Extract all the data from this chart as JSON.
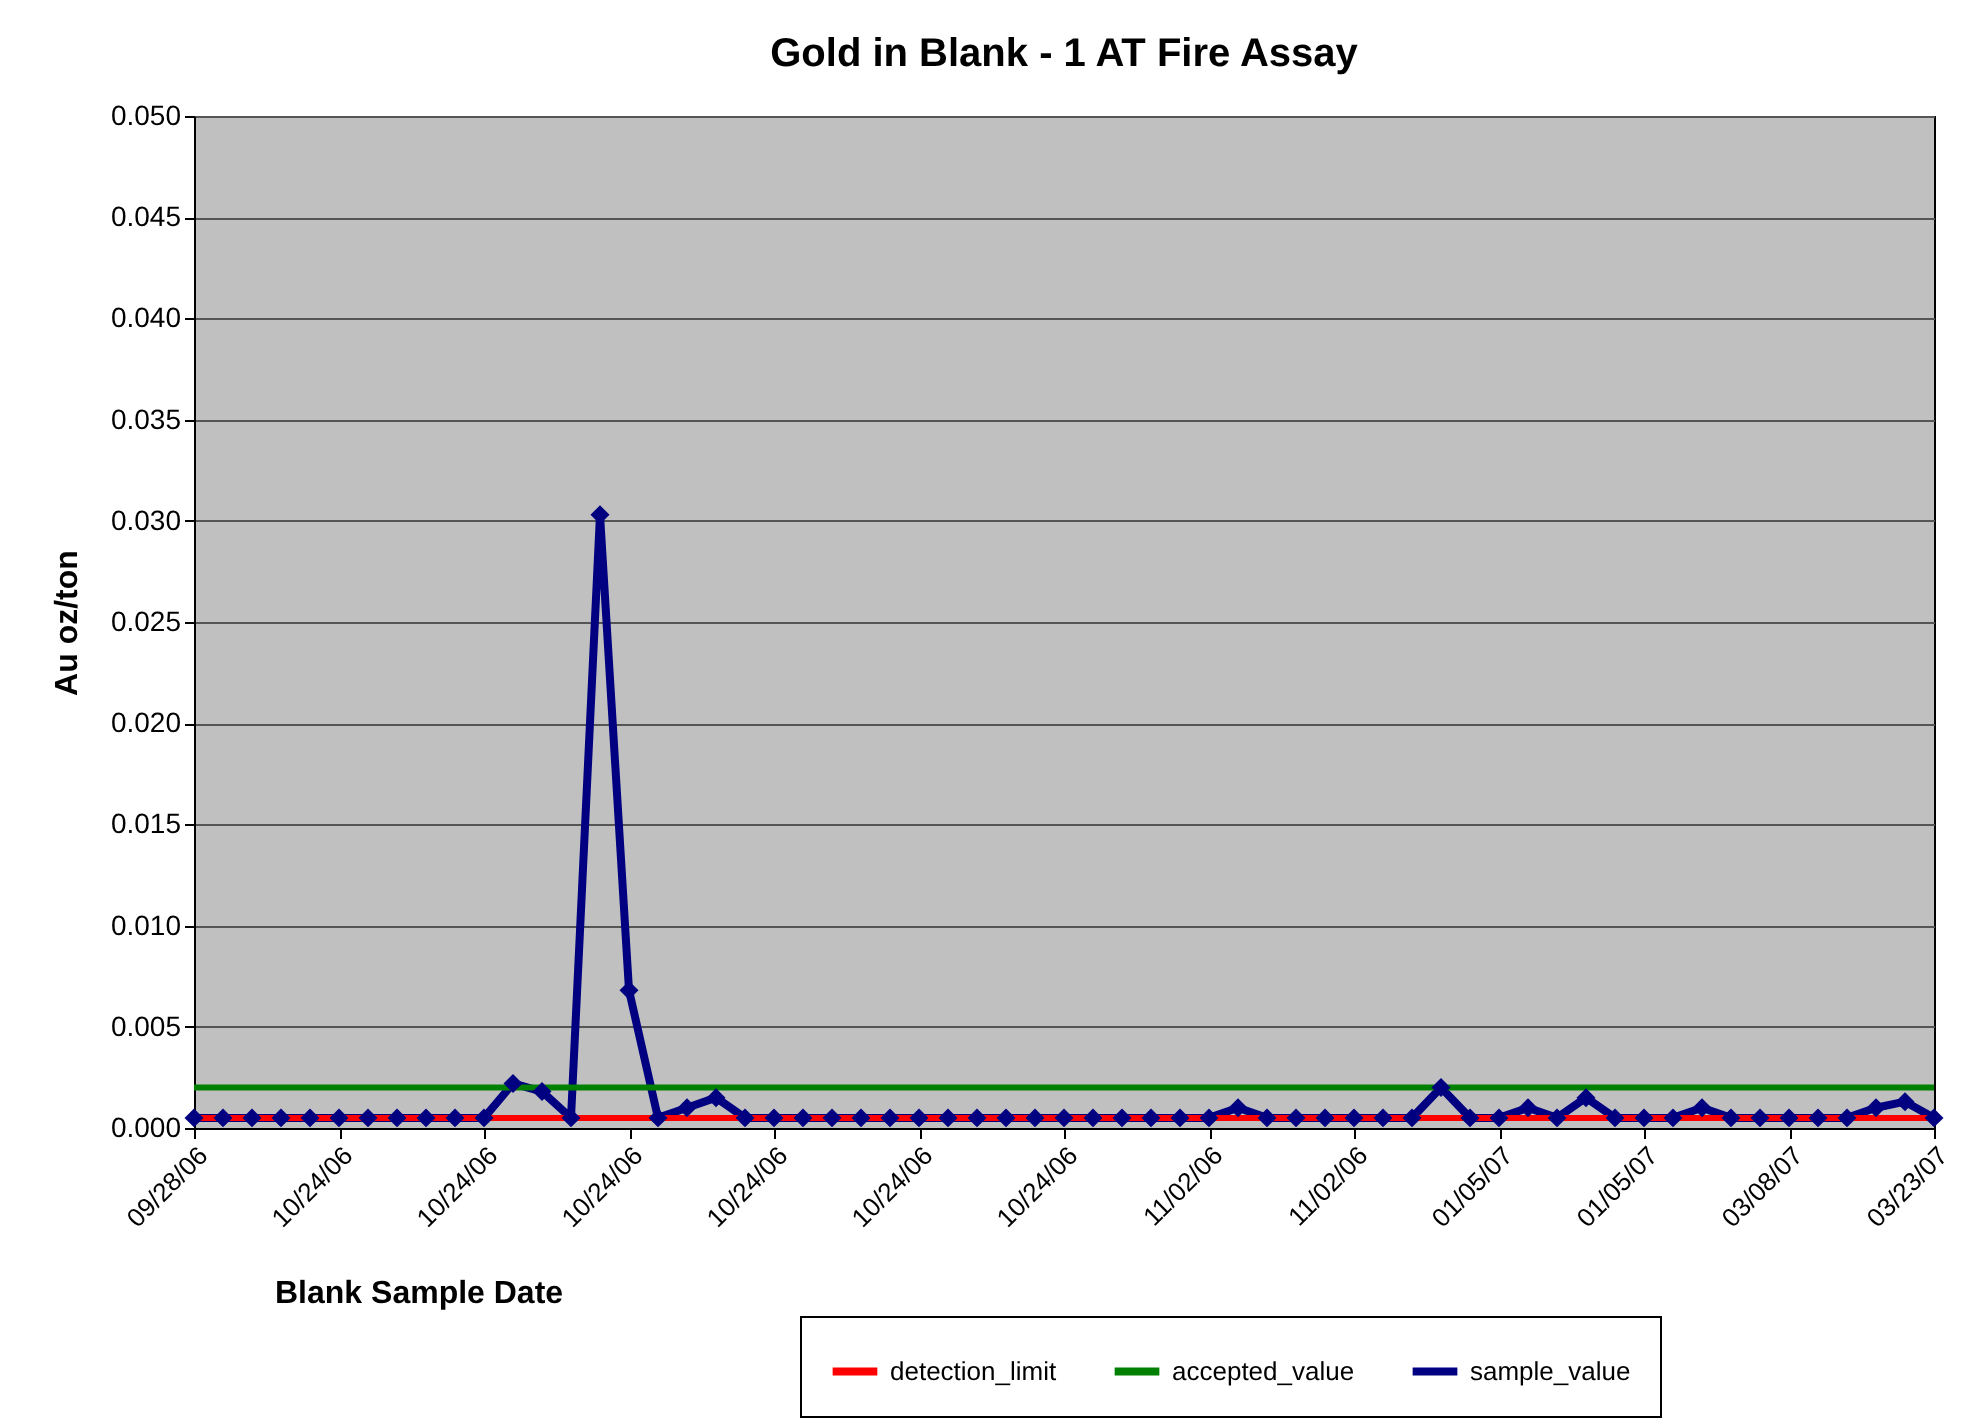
{
  "chart_data": {
    "type": "line",
    "title": "Gold in Blank - 1 AT Fire Assay",
    "xlabel": "Blank Sample Date",
    "ylabel": "Au oz/ton",
    "categories": [
      "09/28/06",
      null,
      null,
      null,
      null,
      "10/24/06",
      null,
      null,
      null,
      null,
      "10/24/06",
      null,
      null,
      null,
      null,
      "10/24/06",
      null,
      null,
      null,
      null,
      "10/24/06",
      null,
      null,
      null,
      null,
      "10/24/06",
      null,
      null,
      null,
      null,
      "10/24/06",
      null,
      null,
      null,
      null,
      "11/02/06",
      null,
      null,
      null,
      null,
      "11/02/06",
      null,
      null,
      null,
      null,
      "01/05/07",
      null,
      null,
      null,
      null,
      "01/05/07",
      null,
      null,
      null,
      null,
      "03/08/07",
      null,
      null,
      null,
      null,
      "03/23/07"
    ],
    "series": [
      {
        "name": "detection_limit",
        "color": "#ff0000",
        "marker": "none",
        "values": [
          0.0005,
          0.0005,
          0.0005,
          0.0005,
          0.0005,
          0.0005,
          0.0005,
          0.0005,
          0.0005,
          0.0005,
          0.0005,
          0.0005,
          0.0005,
          0.0005,
          0.0005,
          0.0005,
          0.0005,
          0.0005,
          0.0005,
          0.0005,
          0.0005,
          0.0005,
          0.0005,
          0.0005,
          0.0005,
          0.0005,
          0.0005,
          0.0005,
          0.0005,
          0.0005,
          0.0005,
          0.0005,
          0.0005,
          0.0005,
          0.0005,
          0.0005,
          0.0005,
          0.0005,
          0.0005,
          0.0005,
          0.0005,
          0.0005,
          0.0005,
          0.0005,
          0.0005,
          0.0005,
          0.0005,
          0.0005,
          0.0005,
          0.0005,
          0.0005,
          0.0005,
          0.0005,
          0.0005,
          0.0005,
          0.0005,
          0.0005,
          0.0005,
          0.0005,
          0.0005,
          0.0005
        ]
      },
      {
        "name": "accepted_value",
        "color": "#008000",
        "marker": "none",
        "values": [
          0.002,
          0.002,
          0.002,
          0.002,
          0.002,
          0.002,
          0.002,
          0.002,
          0.002,
          0.002,
          0.002,
          0.002,
          0.002,
          0.002,
          0.002,
          0.002,
          0.002,
          0.002,
          0.002,
          0.002,
          0.002,
          0.002,
          0.002,
          0.002,
          0.002,
          0.002,
          0.002,
          0.002,
          0.002,
          0.002,
          0.002,
          0.002,
          0.002,
          0.002,
          0.002,
          0.002,
          0.002,
          0.002,
          0.002,
          0.002,
          0.002,
          0.002,
          0.002,
          0.002,
          0.002,
          0.002,
          0.002,
          0.002,
          0.002,
          0.002,
          0.002,
          0.002,
          0.002,
          0.002,
          0.002,
          0.002,
          0.002,
          0.002,
          0.002,
          0.002,
          0.002
        ]
      },
      {
        "name": "sample_value",
        "color": "#000080",
        "marker": "diamond",
        "values": [
          0.0005,
          0.0005,
          0.0005,
          0.0005,
          0.0005,
          0.0005,
          0.0005,
          0.0005,
          0.0005,
          0.0005,
          0.0005,
          0.0022,
          0.0018,
          0.0005,
          0.0303,
          0.0068,
          0.0005,
          0.001,
          0.0015,
          0.0005,
          0.0005,
          0.0005,
          0.0005,
          0.0005,
          0.0005,
          0.0005,
          0.0005,
          0.0005,
          0.0005,
          0.0005,
          0.0005,
          0.0005,
          0.0005,
          0.0005,
          0.0005,
          0.0005,
          0.001,
          0.0005,
          0.0005,
          0.0005,
          0.0005,
          0.0005,
          0.0005,
          0.002,
          0.0005,
          0.0005,
          0.001,
          0.0005,
          0.0015,
          0.0005,
          0.0005,
          0.0005,
          0.001,
          0.0005,
          0.0005,
          0.0005,
          0.0005,
          0.0005,
          0.001,
          0.0013,
          0.0005
        ]
      }
    ],
    "ylim": [
      0,
      0.05
    ],
    "yticks": [
      {
        "value": 0,
        "label": "0.000"
      },
      {
        "value": 0.005,
        "label": "0.005"
      },
      {
        "value": 0.01,
        "label": "0.010"
      },
      {
        "value": 0.015,
        "label": "0.015"
      },
      {
        "value": 0.02,
        "label": "0.020"
      },
      {
        "value": 0.025,
        "label": "0.025"
      },
      {
        "value": 0.03,
        "label": "0.030"
      },
      {
        "value": 0.035,
        "label": "0.035"
      },
      {
        "value": 0.04,
        "label": "0.040"
      },
      {
        "value": 0.045,
        "label": "0.045"
      },
      {
        "value": 0.05,
        "label": "0.050"
      }
    ],
    "grid": "y",
    "legend": "bottom"
  }
}
